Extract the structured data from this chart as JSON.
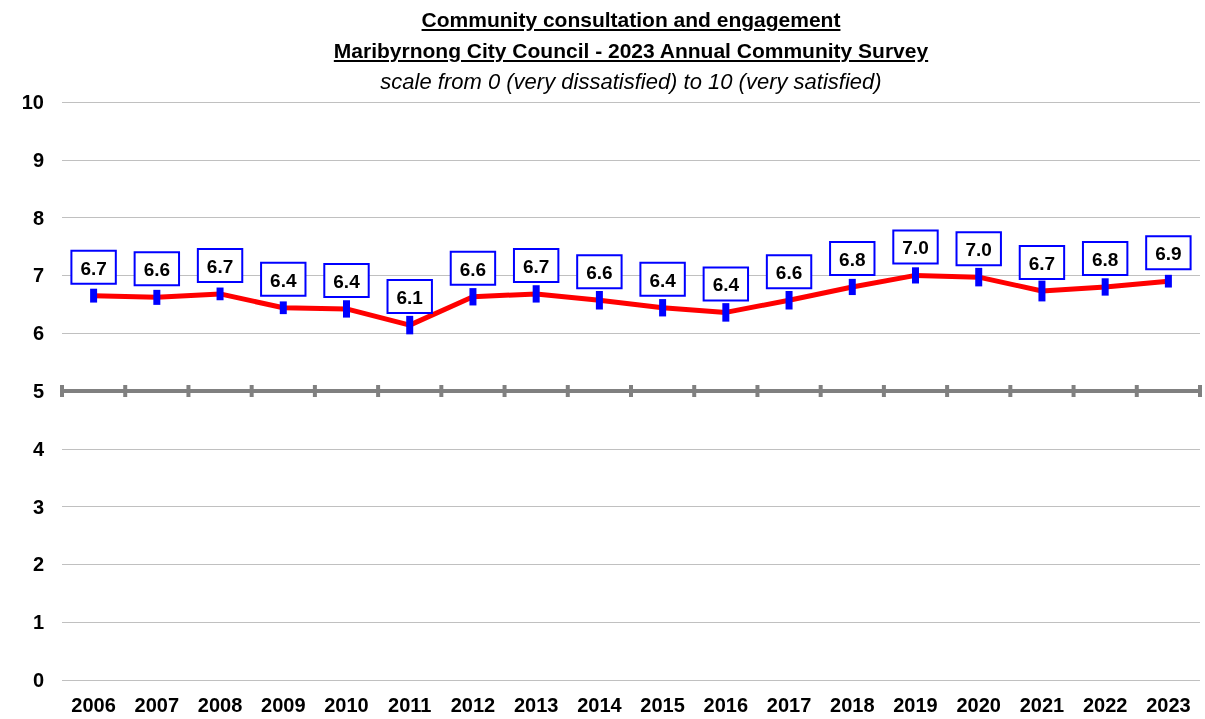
{
  "chart_data": {
    "type": "line",
    "title": "Community consultation and engagement\nMaribyrnong City Council - 2023 Annual Community Survey",
    "subtitle": "scale from 0 (very dissatisfied) to 10 (very satisfied)",
    "categories": [
      "2006",
      "2007",
      "2008",
      "2009",
      "2010",
      "2011",
      "2012",
      "2013",
      "2014",
      "2015",
      "2016",
      "2017",
      "2018",
      "2019",
      "2020",
      "2021",
      "2022",
      "2023"
    ],
    "series": [
      {
        "color": "#ff0000",
        "values": [
          6.65,
          6.62,
          6.68,
          6.44,
          6.42,
          6.14,
          6.63,
          6.68,
          6.57,
          6.44,
          6.36,
          6.57,
          6.8,
          7.0,
          6.97,
          6.73,
          6.8,
          6.9
        ],
        "errors": [
          0.12,
          0.13,
          0.11,
          0.11,
          0.15,
          0.16,
          0.15,
          0.15,
          0.16,
          0.15,
          0.16,
          0.16,
          0.14,
          0.14,
          0.16,
          0.18,
          0.15,
          0.11
        ],
        "value_labels": [
          "6.7",
          "6.6",
          "6.7",
          "6.4",
          "6.4",
          "6.1",
          "6.6",
          "6.7",
          "6.6",
          "6.4",
          "6.4",
          "6.6",
          "6.8",
          "7.0",
          "7.0",
          "6.7",
          "6.8",
          "6.9"
        ]
      }
    ],
    "ylim": [
      0,
      10
    ],
    "yticks": [
      0,
      1,
      2,
      3,
      4,
      5,
      6,
      7,
      8,
      9,
      10
    ],
    "grid": "y",
    "marker": "none",
    "line_style": "solid",
    "ref_lines": [
      {
        "axis": "y",
        "value": 5,
        "color": "#808080"
      }
    ]
  }
}
